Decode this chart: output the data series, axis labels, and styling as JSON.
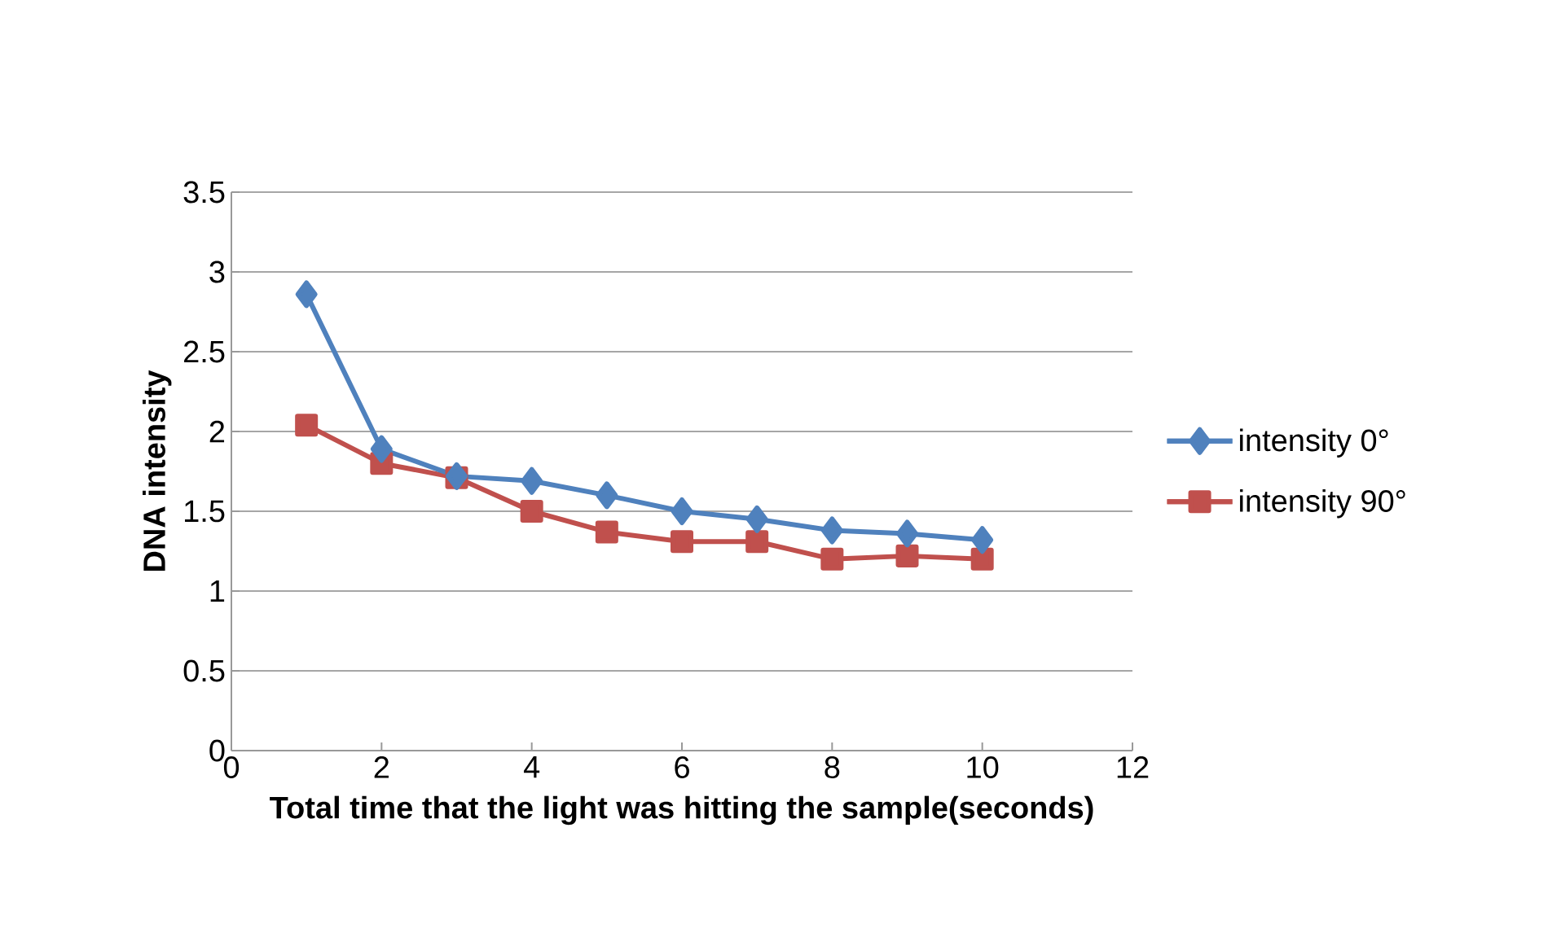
{
  "chart_data": {
    "type": "line",
    "xlabel": "Total time that the light was hitting the sample(seconds)",
    "ylabel": "DNA intensity",
    "x": [
      1,
      2,
      3,
      4,
      5,
      6,
      7,
      8,
      9,
      10
    ],
    "series": [
      {
        "name": "intensity 0°",
        "color": "#4f81bd",
        "marker": "diamond",
        "values": [
          2.86,
          1.89,
          1.72,
          1.69,
          1.6,
          1.5,
          1.45,
          1.38,
          1.36,
          1.32
        ]
      },
      {
        "name": "intensity 90°",
        "color": "#c0504d",
        "marker": "square",
        "values": [
          2.04,
          1.8,
          1.71,
          1.5,
          1.37,
          1.31,
          1.31,
          1.2,
          1.22,
          1.2
        ]
      }
    ],
    "xlim": [
      0,
      12
    ],
    "xticks": [
      0,
      2,
      4,
      6,
      8,
      10,
      12
    ],
    "ylim": [
      0,
      3.5
    ],
    "yticks": [
      0,
      0.5,
      1,
      1.5,
      2,
      2.5,
      3,
      3.5
    ],
    "grid": "y",
    "legend": "right",
    "line_style": "solid"
  }
}
